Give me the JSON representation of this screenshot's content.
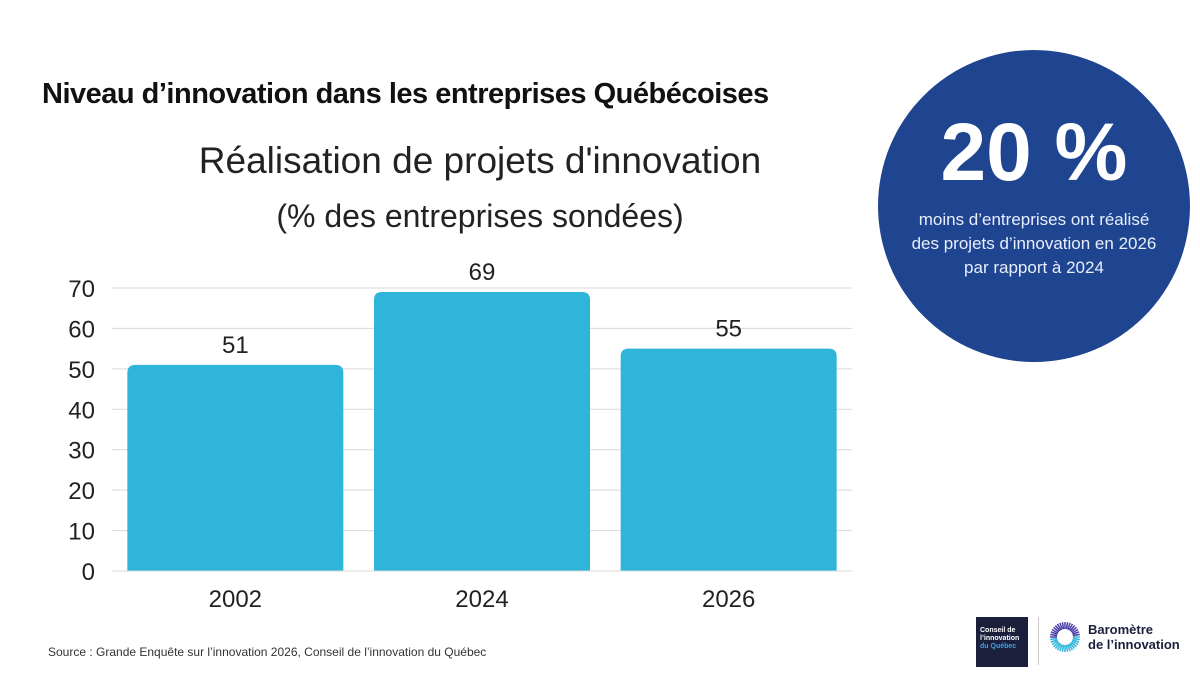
{
  "header": {
    "title": "Niveau d’innovation dans les entreprises Québécoises"
  },
  "chart_data": {
    "type": "bar",
    "title": "Réalisation de projets d'innovation",
    "subtitle": "(% des entreprises sondées)",
    "categories": [
      "2002",
      "2024",
      "2026"
    ],
    "values": [
      51,
      69,
      55
    ],
    "data_labels": [
      "51",
      "69",
      "55"
    ],
    "ylim": [
      0,
      70
    ],
    "yticks": [
      "0",
      "10",
      "20",
      "30",
      "40",
      "50",
      "60",
      "70"
    ],
    "xlabel": "",
    "ylabel": "",
    "grid": true,
    "bar_color": "#2fb5da"
  },
  "callout": {
    "value": "20 %",
    "lines": [
      "moins d’entreprises ont réalisé",
      "des projets d’innovation en 2026",
      "par rapport à 2024"
    ],
    "color": "#1f4590"
  },
  "footer": {
    "source": "Source : Grande Enquête sur l’innovation 2026, Conseil de l’innovation du Québec",
    "logo1": [
      "Conseil de",
      "l’innovation",
      "du Québec"
    ],
    "logo2": [
      "Baromètre",
      "de l’innovation"
    ]
  }
}
